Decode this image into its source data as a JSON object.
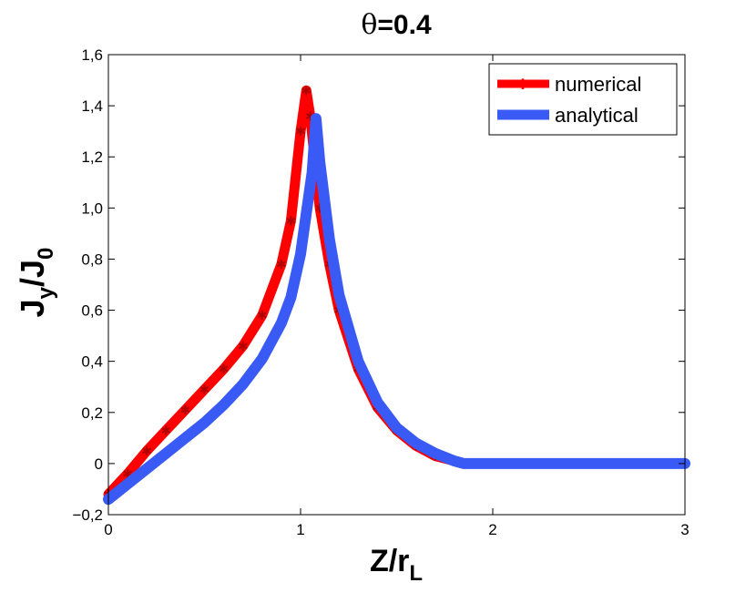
{
  "chart_data": {
    "type": "line",
    "title": "θ=0.4",
    "title_prefix": "θ",
    "title_value": "=0.4",
    "xlabel_main": "Z/r",
    "xlabel_sub": "L",
    "ylabel_parts": [
      "J",
      "y",
      "/J",
      "0"
    ],
    "xlim": [
      0,
      3
    ],
    "ylim": [
      -0.2,
      1.6
    ],
    "xticks": [
      0,
      1,
      2,
      3
    ],
    "xtick_labels": [
      "0",
      "1",
      "2",
      "3"
    ],
    "yticks": [
      -0.2,
      0,
      0.2,
      0.4,
      0.6,
      0.8,
      1.0,
      1.2,
      1.4,
      1.6
    ],
    "ytick_labels": [
      "−0,2",
      "0",
      "0,2",
      "0,4",
      "0,6",
      "0,8",
      "1,0",
      "1,2",
      "1,4",
      "1,6"
    ],
    "grid": false,
    "legend_position": "top-right",
    "series": [
      {
        "name": "numerical",
        "color": "#ff0000",
        "marker": "star",
        "x": [
          0.0,
          0.1,
          0.2,
          0.3,
          0.4,
          0.5,
          0.6,
          0.7,
          0.8,
          0.9,
          0.95,
          1.0,
          1.03,
          1.05,
          1.1,
          1.15,
          1.2,
          1.3,
          1.4,
          1.5,
          1.6,
          1.7,
          1.8,
          1.85,
          1.9,
          2.0,
          2.2,
          2.4,
          2.6,
          2.8,
          3.0
        ],
        "y": [
          -0.12,
          -0.04,
          0.05,
          0.13,
          0.21,
          0.29,
          0.37,
          0.46,
          0.58,
          0.78,
          0.95,
          1.3,
          1.46,
          1.36,
          1.0,
          0.78,
          0.6,
          0.37,
          0.22,
          0.13,
          0.07,
          0.03,
          0.01,
          0.0,
          0.0,
          0.0,
          0.0,
          0.0,
          0.0,
          0.0,
          0.0
        ]
      },
      {
        "name": "analytical",
        "color": "#3a5af5",
        "marker": "none",
        "x": [
          0.0,
          0.1,
          0.2,
          0.3,
          0.4,
          0.5,
          0.6,
          0.7,
          0.8,
          0.9,
          0.95,
          1.0,
          1.03,
          1.06,
          1.08,
          1.1,
          1.15,
          1.2,
          1.3,
          1.4,
          1.5,
          1.6,
          1.7,
          1.8,
          1.85,
          1.9,
          2.0,
          2.2,
          2.4,
          2.6,
          2.8,
          3.0
        ],
        "y": [
          -0.14,
          -0.08,
          -0.02,
          0.04,
          0.1,
          0.16,
          0.23,
          0.31,
          0.41,
          0.55,
          0.65,
          0.82,
          0.98,
          1.14,
          1.35,
          1.18,
          0.88,
          0.66,
          0.4,
          0.24,
          0.14,
          0.08,
          0.04,
          0.01,
          0.0,
          0.0,
          0.0,
          0.0,
          0.0,
          0.0,
          0.0,
          0.0
        ]
      }
    ]
  }
}
